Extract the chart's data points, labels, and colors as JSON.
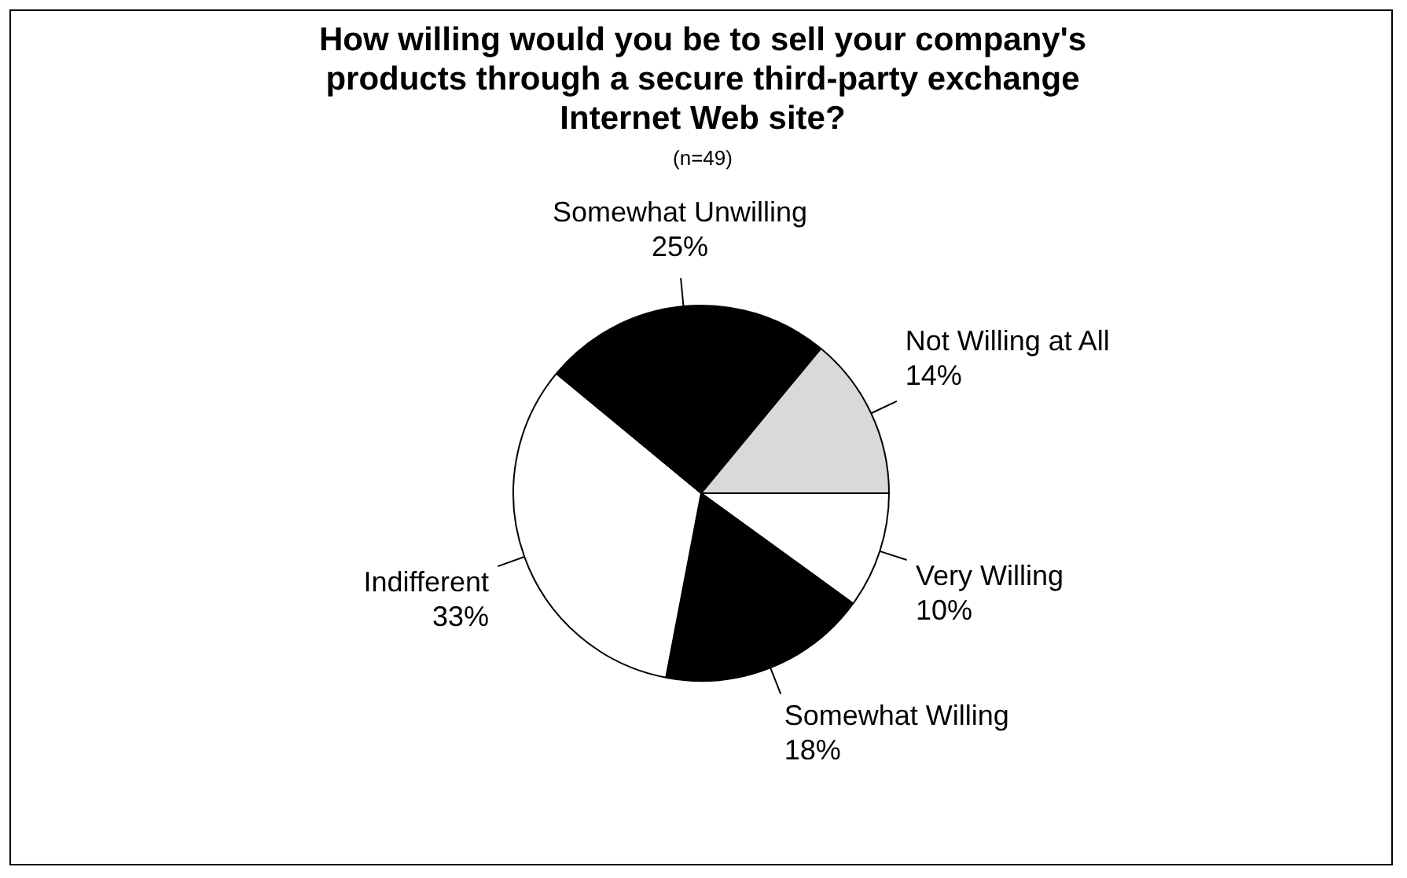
{
  "chart_data": {
    "type": "pie",
    "title": "How willing would you be to sell your company's products through a secure third-party exchange Internet Web site?",
    "subtitle": "(n=49)",
    "categories": [
      "Very Willing",
      "Somewhat Willing",
      "Indifferent",
      "Somewhat Unwilling",
      "Not Willing at All"
    ],
    "values": [
      10,
      18,
      33,
      25,
      14
    ],
    "value_labels": [
      "10%",
      "18%",
      "33%",
      "25%",
      "14%"
    ],
    "colors": [
      "#ffffff",
      "#000000",
      "#ffffff",
      "#000000",
      "#d9d9d9"
    ],
    "legend": false
  }
}
